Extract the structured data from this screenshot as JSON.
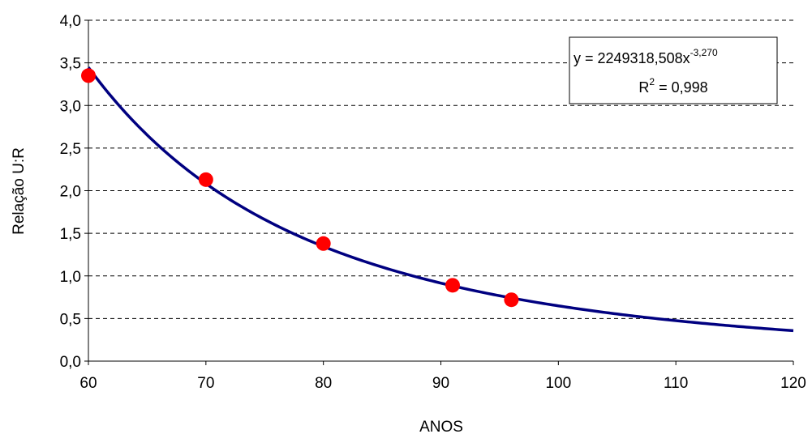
{
  "chart_data": {
    "type": "scatter",
    "title": "",
    "xlabel": "ANOS",
    "ylabel": "Relação U:R",
    "xlim": [
      60,
      120
    ],
    "ylim": [
      0,
      4
    ],
    "grid": true,
    "x_ticks": [
      "60",
      "70",
      "80",
      "90",
      "100",
      "110",
      "120"
    ],
    "x_tick_values": [
      60,
      70,
      80,
      90,
      100,
      110,
      120
    ],
    "y_ticks": [
      "0,0",
      "0,5",
      "1,0",
      "1,5",
      "2,0",
      "2,5",
      "3,0",
      "3,5",
      "4,0"
    ],
    "y_tick_values": [
      0,
      0.5,
      1.0,
      1.5,
      2.0,
      2.5,
      3.0,
      3.5,
      4.0
    ],
    "series": [
      {
        "x": [
          60,
          70,
          80,
          91,
          96
        ],
        "y": [
          3.35,
          2.13,
          1.38,
          0.89,
          0.72
        ],
        "color": "#ff0000"
      }
    ],
    "trendline": {
      "kind": "power",
      "coefficient": 2249318.508,
      "exponent": -3.27,
      "color": "#000080",
      "x_range": [
        60,
        120
      ]
    },
    "annotation": {
      "equation_main": "y = 2249318,508x",
      "equation_exp": "-3,270",
      "r2_label": "R",
      "r2_sup": "2",
      "r2_value": " = 0,998"
    }
  }
}
